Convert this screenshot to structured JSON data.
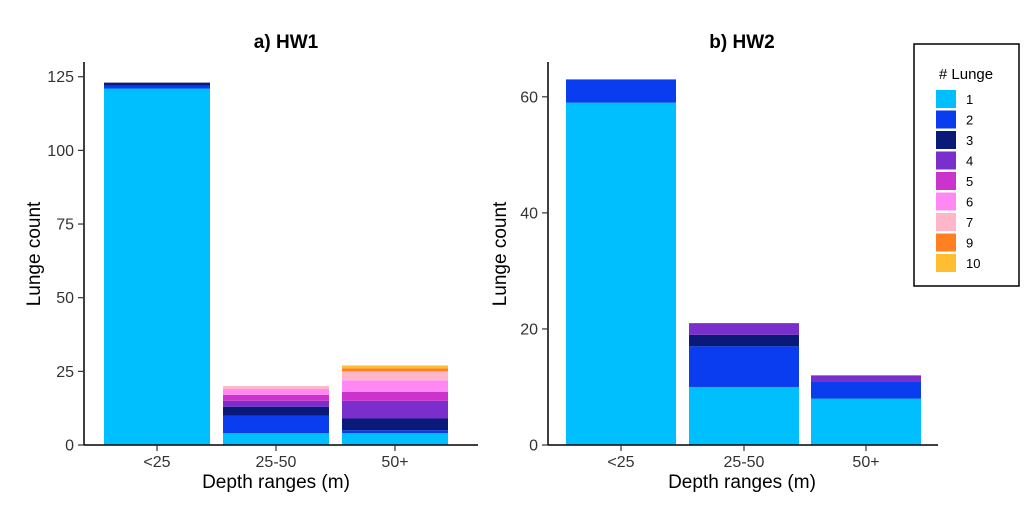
{
  "chart_data": [
    {
      "type": "bar",
      "stacked": true,
      "title": "a) HW1",
      "xlabel": "Depth ranges (m)",
      "ylabel": "Lunge count",
      "categories": [
        "<25",
        "25-50",
        "50+"
      ],
      "ylim": [
        0,
        130
      ],
      "yticks": [
        0,
        25,
        50,
        75,
        100,
        125
      ],
      "series": [
        {
          "name": "1",
          "values": [
            121,
            4,
            4
          ]
        },
        {
          "name": "2",
          "values": [
            1,
            6,
            1
          ]
        },
        {
          "name": "3",
          "values": [
            1,
            3,
            4
          ]
        },
        {
          "name": "4",
          "values": [
            0,
            2,
            6
          ]
        },
        {
          "name": "5",
          "values": [
            0,
            2,
            3
          ]
        },
        {
          "name": "6",
          "values": [
            0,
            2,
            4
          ]
        },
        {
          "name": "7",
          "values": [
            0,
            1,
            3
          ]
        },
        {
          "name": "9",
          "values": [
            0,
            0,
            1
          ]
        },
        {
          "name": "10",
          "values": [
            0,
            0,
            1
          ]
        }
      ],
      "grid": false
    },
    {
      "type": "bar",
      "stacked": true,
      "title": "b) HW2",
      "xlabel": "Depth ranges (m)",
      "ylabel": "Lunge count",
      "categories": [
        "<25",
        "25-50",
        "50+"
      ],
      "ylim": [
        0,
        66
      ],
      "yticks": [
        0,
        20,
        40,
        60
      ],
      "series": [
        {
          "name": "1",
          "values": [
            59,
            10,
            8
          ]
        },
        {
          "name": "2",
          "values": [
            4,
            7,
            3
          ]
        },
        {
          "name": "3",
          "values": [
            0,
            2,
            0
          ]
        },
        {
          "name": "4",
          "values": [
            0,
            2,
            1
          ]
        },
        {
          "name": "5",
          "values": [
            0,
            0,
            0
          ]
        },
        {
          "name": "6",
          "values": [
            0,
            0,
            0
          ]
        },
        {
          "name": "7",
          "values": [
            0,
            0,
            0
          ]
        },
        {
          "name": "9",
          "values": [
            0,
            0,
            0
          ]
        },
        {
          "name": "10",
          "values": [
            0,
            0,
            0
          ]
        }
      ],
      "grid": false
    }
  ],
  "legend": {
    "title": "# Lunge",
    "placement": "right",
    "items": [
      {
        "label": "1",
        "color": "#00BFFF"
      },
      {
        "label": "2",
        "color": "#0A3CF0"
      },
      {
        "label": "3",
        "color": "#0A1A78"
      },
      {
        "label": "4",
        "color": "#7A2ECC"
      },
      {
        "label": "5",
        "color": "#CC33CC"
      },
      {
        "label": "6",
        "color": "#FF88F2"
      },
      {
        "label": "7",
        "color": "#FFB6C8"
      },
      {
        "label": "9",
        "color": "#FF8020"
      },
      {
        "label": "10",
        "color": "#FFBE30"
      }
    ]
  }
}
